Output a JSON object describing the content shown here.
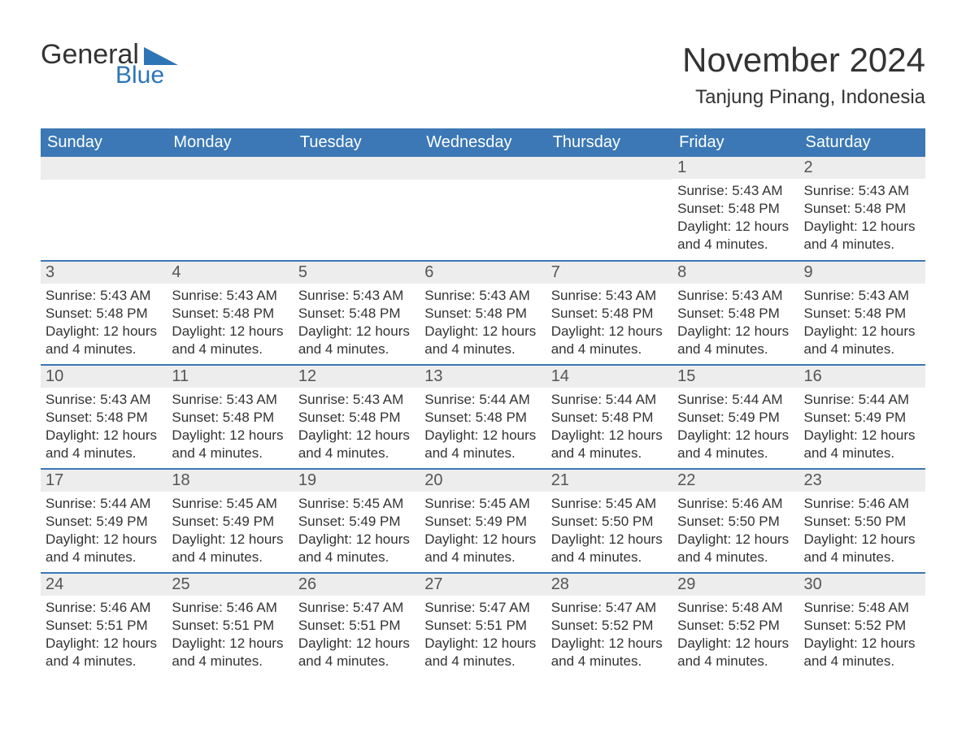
{
  "logo": {
    "text1": "General",
    "text2": "Blue"
  },
  "title": "November 2024",
  "location": "Tanjung Pinang, Indonesia",
  "colors": {
    "header_bg": "#3b78b5",
    "header_text": "#ffffff",
    "daynum_bg": "#ededed",
    "daynum_text": "#555555",
    "body_text": "#333333",
    "rule": "#3b78b5",
    "logo_blue": "#2e75b6"
  },
  "weekdays": [
    "Sunday",
    "Monday",
    "Tuesday",
    "Wednesday",
    "Thursday",
    "Friday",
    "Saturday"
  ],
  "weeks": [
    [
      null,
      null,
      null,
      null,
      null,
      {
        "n": "1",
        "sunrise": "Sunrise: 5:43 AM",
        "sunset": "Sunset: 5:48 PM",
        "daylight": "Daylight: 12 hours and 4 minutes."
      },
      {
        "n": "2",
        "sunrise": "Sunrise: 5:43 AM",
        "sunset": "Sunset: 5:48 PM",
        "daylight": "Daylight: 12 hours and 4 minutes."
      }
    ],
    [
      {
        "n": "3",
        "sunrise": "Sunrise: 5:43 AM",
        "sunset": "Sunset: 5:48 PM",
        "daylight": "Daylight: 12 hours and 4 minutes."
      },
      {
        "n": "4",
        "sunrise": "Sunrise: 5:43 AM",
        "sunset": "Sunset: 5:48 PM",
        "daylight": "Daylight: 12 hours and 4 minutes."
      },
      {
        "n": "5",
        "sunrise": "Sunrise: 5:43 AM",
        "sunset": "Sunset: 5:48 PM",
        "daylight": "Daylight: 12 hours and 4 minutes."
      },
      {
        "n": "6",
        "sunrise": "Sunrise: 5:43 AM",
        "sunset": "Sunset: 5:48 PM",
        "daylight": "Daylight: 12 hours and 4 minutes."
      },
      {
        "n": "7",
        "sunrise": "Sunrise: 5:43 AM",
        "sunset": "Sunset: 5:48 PM",
        "daylight": "Daylight: 12 hours and 4 minutes."
      },
      {
        "n": "8",
        "sunrise": "Sunrise: 5:43 AM",
        "sunset": "Sunset: 5:48 PM",
        "daylight": "Daylight: 12 hours and 4 minutes."
      },
      {
        "n": "9",
        "sunrise": "Sunrise: 5:43 AM",
        "sunset": "Sunset: 5:48 PM",
        "daylight": "Daylight: 12 hours and 4 minutes."
      }
    ],
    [
      {
        "n": "10",
        "sunrise": "Sunrise: 5:43 AM",
        "sunset": "Sunset: 5:48 PM",
        "daylight": "Daylight: 12 hours and 4 minutes."
      },
      {
        "n": "11",
        "sunrise": "Sunrise: 5:43 AM",
        "sunset": "Sunset: 5:48 PM",
        "daylight": "Daylight: 12 hours and 4 minutes."
      },
      {
        "n": "12",
        "sunrise": "Sunrise: 5:43 AM",
        "sunset": "Sunset: 5:48 PM",
        "daylight": "Daylight: 12 hours and 4 minutes."
      },
      {
        "n": "13",
        "sunrise": "Sunrise: 5:44 AM",
        "sunset": "Sunset: 5:48 PM",
        "daylight": "Daylight: 12 hours and 4 minutes."
      },
      {
        "n": "14",
        "sunrise": "Sunrise: 5:44 AM",
        "sunset": "Sunset: 5:48 PM",
        "daylight": "Daylight: 12 hours and 4 minutes."
      },
      {
        "n": "15",
        "sunrise": "Sunrise: 5:44 AM",
        "sunset": "Sunset: 5:49 PM",
        "daylight": "Daylight: 12 hours and 4 minutes."
      },
      {
        "n": "16",
        "sunrise": "Sunrise: 5:44 AM",
        "sunset": "Sunset: 5:49 PM",
        "daylight": "Daylight: 12 hours and 4 minutes."
      }
    ],
    [
      {
        "n": "17",
        "sunrise": "Sunrise: 5:44 AM",
        "sunset": "Sunset: 5:49 PM",
        "daylight": "Daylight: 12 hours and 4 minutes."
      },
      {
        "n": "18",
        "sunrise": "Sunrise: 5:45 AM",
        "sunset": "Sunset: 5:49 PM",
        "daylight": "Daylight: 12 hours and 4 minutes."
      },
      {
        "n": "19",
        "sunrise": "Sunrise: 5:45 AM",
        "sunset": "Sunset: 5:49 PM",
        "daylight": "Daylight: 12 hours and 4 minutes."
      },
      {
        "n": "20",
        "sunrise": "Sunrise: 5:45 AM",
        "sunset": "Sunset: 5:49 PM",
        "daylight": "Daylight: 12 hours and 4 minutes."
      },
      {
        "n": "21",
        "sunrise": "Sunrise: 5:45 AM",
        "sunset": "Sunset: 5:50 PM",
        "daylight": "Daylight: 12 hours and 4 minutes."
      },
      {
        "n": "22",
        "sunrise": "Sunrise: 5:46 AM",
        "sunset": "Sunset: 5:50 PM",
        "daylight": "Daylight: 12 hours and 4 minutes."
      },
      {
        "n": "23",
        "sunrise": "Sunrise: 5:46 AM",
        "sunset": "Sunset: 5:50 PM",
        "daylight": "Daylight: 12 hours and 4 minutes."
      }
    ],
    [
      {
        "n": "24",
        "sunrise": "Sunrise: 5:46 AM",
        "sunset": "Sunset: 5:51 PM",
        "daylight": "Daylight: 12 hours and 4 minutes."
      },
      {
        "n": "25",
        "sunrise": "Sunrise: 5:46 AM",
        "sunset": "Sunset: 5:51 PM",
        "daylight": "Daylight: 12 hours and 4 minutes."
      },
      {
        "n": "26",
        "sunrise": "Sunrise: 5:47 AM",
        "sunset": "Sunset: 5:51 PM",
        "daylight": "Daylight: 12 hours and 4 minutes."
      },
      {
        "n": "27",
        "sunrise": "Sunrise: 5:47 AM",
        "sunset": "Sunset: 5:51 PM",
        "daylight": "Daylight: 12 hours and 4 minutes."
      },
      {
        "n": "28",
        "sunrise": "Sunrise: 5:47 AM",
        "sunset": "Sunset: 5:52 PM",
        "daylight": "Daylight: 12 hours and 4 minutes."
      },
      {
        "n": "29",
        "sunrise": "Sunrise: 5:48 AM",
        "sunset": "Sunset: 5:52 PM",
        "daylight": "Daylight: 12 hours and 4 minutes."
      },
      {
        "n": "30",
        "sunrise": "Sunrise: 5:48 AM",
        "sunset": "Sunset: 5:52 PM",
        "daylight": "Daylight: 12 hours and 4 minutes."
      }
    ]
  ]
}
